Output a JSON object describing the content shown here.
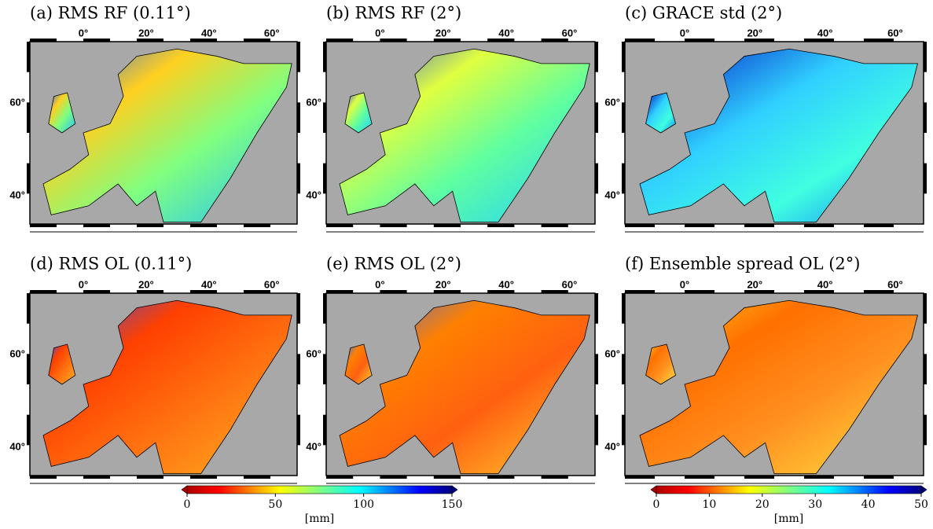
{
  "panels": [
    {
      "title": "(a)  RMS RF (0.11°)"
    },
    {
      "title": "(b)  RMS RF (2°)"
    },
    {
      "title": "(c)  GRACE std (2°)"
    },
    {
      "title": "(d)  RMS OL (0.11°)"
    },
    {
      "title": "(e)  RMS OL (2°)"
    },
    {
      "title": "(f)  Ensemble spread OL (2°)"
    }
  ],
  "lon_labels": [
    "0°",
    "20°",
    "40°",
    "60°"
  ],
  "lat_labels": [
    "60°",
    "40°"
  ],
  "colorbars": [
    {
      "lim": [
        0,
        150
      ],
      "ticks": [
        0,
        50,
        100,
        150
      ],
      "label": "[mm]"
    },
    {
      "lim": [
        0,
        50
      ],
      "ticks": [
        0,
        10,
        20,
        30,
        40,
        50
      ],
      "label": "[mm]"
    }
  ]
}
